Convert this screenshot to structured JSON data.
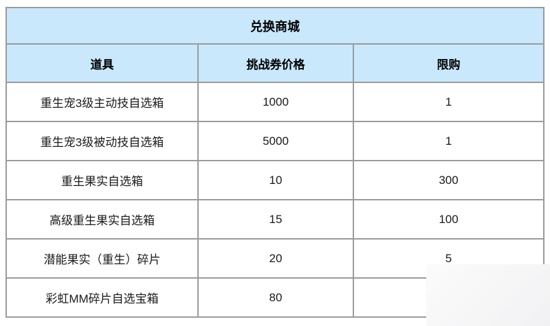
{
  "table": {
    "title": "兑换商城",
    "columns": [
      "道具",
      "挑战券价格",
      "限购"
    ],
    "rows": [
      {
        "item": "重生宠3级主动技自选箱",
        "price": "1000",
        "limit": "1"
      },
      {
        "item": "重生宠3级被动技自选箱",
        "price": "5000",
        "limit": "1"
      },
      {
        "item": "重生果实自选箱",
        "price": "10",
        "limit": "300"
      },
      {
        "item": "高级重生果实自选箱",
        "price": "15",
        "limit": "100"
      },
      {
        "item": "潜能果实（重生）碎片",
        "price": "20",
        "limit": "5"
      },
      {
        "item": "彩虹MM碎片自选宝箱",
        "price": "80",
        "limit": ""
      }
    ],
    "colors": {
      "header_bg": "#c9e8fb",
      "border": "#9b9b9b",
      "text": "#1a1a1a",
      "page_bg": "#ffffff",
      "overlay_bg": "#f6f6f7"
    }
  },
  "chart_data": {
    "type": "table",
    "title": "兑换商城",
    "columns": [
      "道具",
      "挑战券价格",
      "限购"
    ],
    "rows": [
      [
        "重生宠3级主动技自选箱",
        1000,
        1
      ],
      [
        "重生宠3级被动技自选箱",
        5000,
        1
      ],
      [
        "重生果实自选箱",
        10,
        300
      ],
      [
        "高级重生果实自选箱",
        15,
        100
      ],
      [
        "潜能果实（重生）碎片",
        20,
        5
      ],
      [
        "彩虹MM碎片自选宝箱",
        80,
        null
      ]
    ],
    "notes": "bottom-right limit value hidden by white overlay patch"
  }
}
